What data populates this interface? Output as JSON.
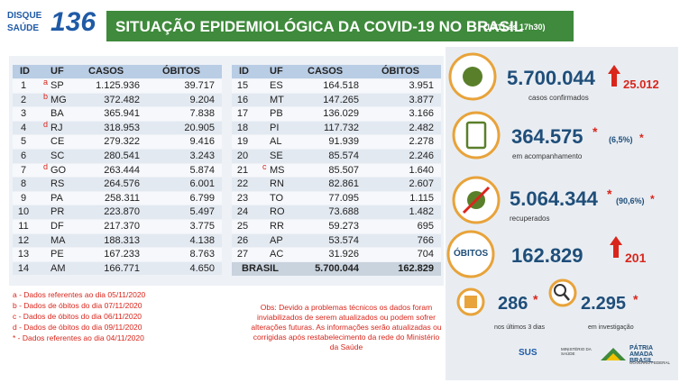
{
  "header": {
    "logo_top": "DISQUE",
    "logo_bottom": "SAÚDE",
    "logo_number": "136",
    "title": "SITUAÇÃO EPIDEMIOLÓGICA DA COVID-19 NO BRASIL",
    "timestamp": "(10/11 às 17h30)"
  },
  "table": {
    "columns": [
      "ID",
      "UF",
      "CASOS",
      "ÓBITOS"
    ],
    "left": [
      {
        "id": "1",
        "note": "a",
        "uf": "SP",
        "cases": "1.125.936",
        "deaths": "39.717"
      },
      {
        "id": "2",
        "note": "b",
        "uf": "MG",
        "cases": "372.482",
        "deaths": "9.204"
      },
      {
        "id": "3",
        "uf": "BA",
        "cases": "365.941",
        "deaths": "7.838"
      },
      {
        "id": "4",
        "note": "d",
        "uf": "RJ",
        "cases": "318.953",
        "deaths": "20.905"
      },
      {
        "id": "5",
        "uf": "CE",
        "cases": "279.322",
        "deaths": "9.416"
      },
      {
        "id": "6",
        "uf": "SC",
        "cases": "280.541",
        "deaths": "3.243"
      },
      {
        "id": "7",
        "note": "d",
        "uf": "GO",
        "cases": "263.444",
        "deaths": "5.874"
      },
      {
        "id": "8",
        "uf": "RS",
        "cases": "264.576",
        "deaths": "6.001"
      },
      {
        "id": "9",
        "uf": "PA",
        "cases": "258.311",
        "deaths": "6.799"
      },
      {
        "id": "10",
        "uf": "PR",
        "cases": "223.870",
        "deaths": "5.497"
      },
      {
        "id": "11",
        "uf": "DF",
        "cases": "217.370",
        "deaths": "3.775"
      },
      {
        "id": "12",
        "uf": "MA",
        "cases": "188.313",
        "deaths": "4.138"
      },
      {
        "id": "13",
        "uf": "PE",
        "cases": "167.233",
        "deaths": "8.763"
      },
      {
        "id": "14",
        "uf": "AM",
        "cases": "166.771",
        "deaths": "4.650"
      }
    ],
    "right": [
      {
        "id": "15",
        "uf": "ES",
        "cases": "164.518",
        "deaths": "3.951"
      },
      {
        "id": "16",
        "uf": "MT",
        "cases": "147.265",
        "deaths": "3.877"
      },
      {
        "id": "17",
        "uf": "PB",
        "cases": "136.029",
        "deaths": "3.166"
      },
      {
        "id": "18",
        "uf": "PI",
        "cases": "117.732",
        "deaths": "2.482"
      },
      {
        "id": "19",
        "uf": "AL",
        "cases": "91.939",
        "deaths": "2.278"
      },
      {
        "id": "20",
        "uf": "SE",
        "cases": "85.574",
        "deaths": "2.246"
      },
      {
        "id": "21",
        "note": "c",
        "uf": "MS",
        "cases": "85.507",
        "deaths": "1.640"
      },
      {
        "id": "22",
        "uf": "RN",
        "cases": "82.861",
        "deaths": "2.607"
      },
      {
        "id": "23",
        "uf": "TO",
        "cases": "77.095",
        "deaths": "1.115"
      },
      {
        "id": "24",
        "uf": "RO",
        "cases": "73.688",
        "deaths": "1.482"
      },
      {
        "id": "25",
        "uf": "RR",
        "cases": "59.273",
        "deaths": "695"
      },
      {
        "id": "26",
        "uf": "AP",
        "cases": "53.574",
        "deaths": "766"
      },
      {
        "id": "27",
        "uf": "AC",
        "cases": "31.926",
        "deaths": "704"
      }
    ],
    "total": {
      "label": "BRASIL",
      "cases": "5.700.044",
      "deaths": "162.829"
    }
  },
  "footnotes": [
    "a - Dados referentes ao dia 05/11/2020",
    "b - Dados de óbitos do dia 07/11/2020",
    "c - Dados de óbitos do dia 06/11/2020",
    "d - Dados de óbitos do dia 09/11/2020",
    "* - Dados referentes ao dia 04/11/2020"
  ],
  "obs": "Obs: Devido a problemas técnicos os dados foram inviabilizados de serem atualizados ou podem sofrer alterações futuras. As informações serão atualizadas ou corrigidas após restabelecimento da rede do Ministério da Saúde",
  "summary": {
    "confirmed": {
      "value": "5.700.044",
      "increase": "25.012",
      "label": "casos confirmados"
    },
    "monitoring": {
      "value": "364.575",
      "star": "*",
      "percent": "(6,5%)",
      "percent_star": "*",
      "label": "em acompanhamento"
    },
    "recovered": {
      "value": "5.064.344",
      "star": "*",
      "percent": "(90,6%)",
      "percent_star": "*",
      "label": "recuperados"
    },
    "deaths": {
      "badge": "ÓBITOS",
      "value": "162.829",
      "increase": "201"
    },
    "recent": {
      "value": "286",
      "star": "*",
      "label": "nos últimos 3 dias"
    },
    "investigation": {
      "value": "2.295",
      "star": "*",
      "label": "em investigação"
    }
  },
  "footer": {
    "sus": "SUS",
    "ministry": "MINISTÉRIO DA SAÚDE",
    "slogan": "PÁTRIA AMADA BRASIL",
    "government": "GOVERNO FEDERAL"
  }
}
